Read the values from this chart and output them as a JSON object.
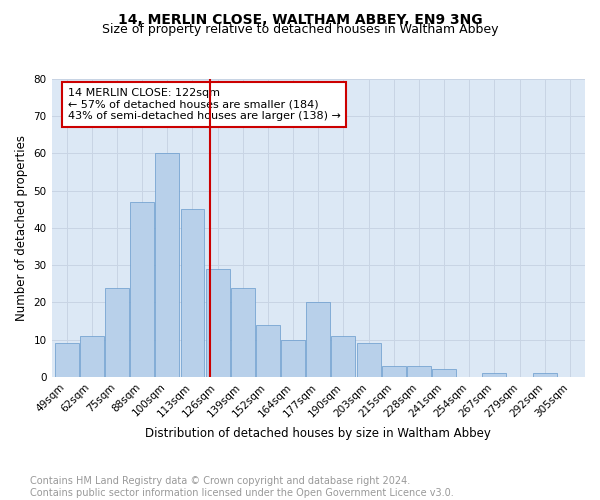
{
  "title1": "14, MERLIN CLOSE, WALTHAM ABBEY, EN9 3NG",
  "title2": "Size of property relative to detached houses in Waltham Abbey",
  "xlabel": "Distribution of detached houses by size in Waltham Abbey",
  "ylabel": "Number of detached properties",
  "footer1": "Contains HM Land Registry data © Crown copyright and database right 2024.",
  "footer2": "Contains public sector information licensed under the Open Government Licence v3.0.",
  "categories": [
    "49sqm",
    "62sqm",
    "75sqm",
    "88sqm",
    "100sqm",
    "113sqm",
    "126sqm",
    "139sqm",
    "152sqm",
    "164sqm",
    "177sqm",
    "190sqm",
    "203sqm",
    "215sqm",
    "228sqm",
    "241sqm",
    "254sqm",
    "267sqm",
    "279sqm",
    "292sqm",
    "305sqm"
  ],
  "values": [
    9,
    11,
    24,
    47,
    60,
    45,
    29,
    24,
    14,
    10,
    20,
    11,
    9,
    3,
    3,
    2,
    0,
    1,
    0,
    1,
    0
  ],
  "bar_color": "#b8d0ea",
  "bar_edge_color": "#6699cc",
  "vline_color": "#cc0000",
  "annotation_text": "14 MERLIN CLOSE: 122sqm\n← 57% of detached houses are smaller (184)\n43% of semi-detached houses are larger (138) →",
  "annotation_box_color": "#cc0000",
  "annotation_box_bg": "#ffffff",
  "ylim": [
    0,
    80
  ],
  "yticks": [
    0,
    10,
    20,
    30,
    40,
    50,
    60,
    70,
    80
  ],
  "grid_color": "#c8d4e4",
  "bg_color": "#dce8f5",
  "title1_fontsize": 10,
  "title2_fontsize": 9,
  "xlabel_fontsize": 8.5,
  "ylabel_fontsize": 8.5,
  "tick_fontsize": 7.5,
  "annotation_fontsize": 8,
  "footer_fontsize": 7,
  "footer_color": "#999999"
}
